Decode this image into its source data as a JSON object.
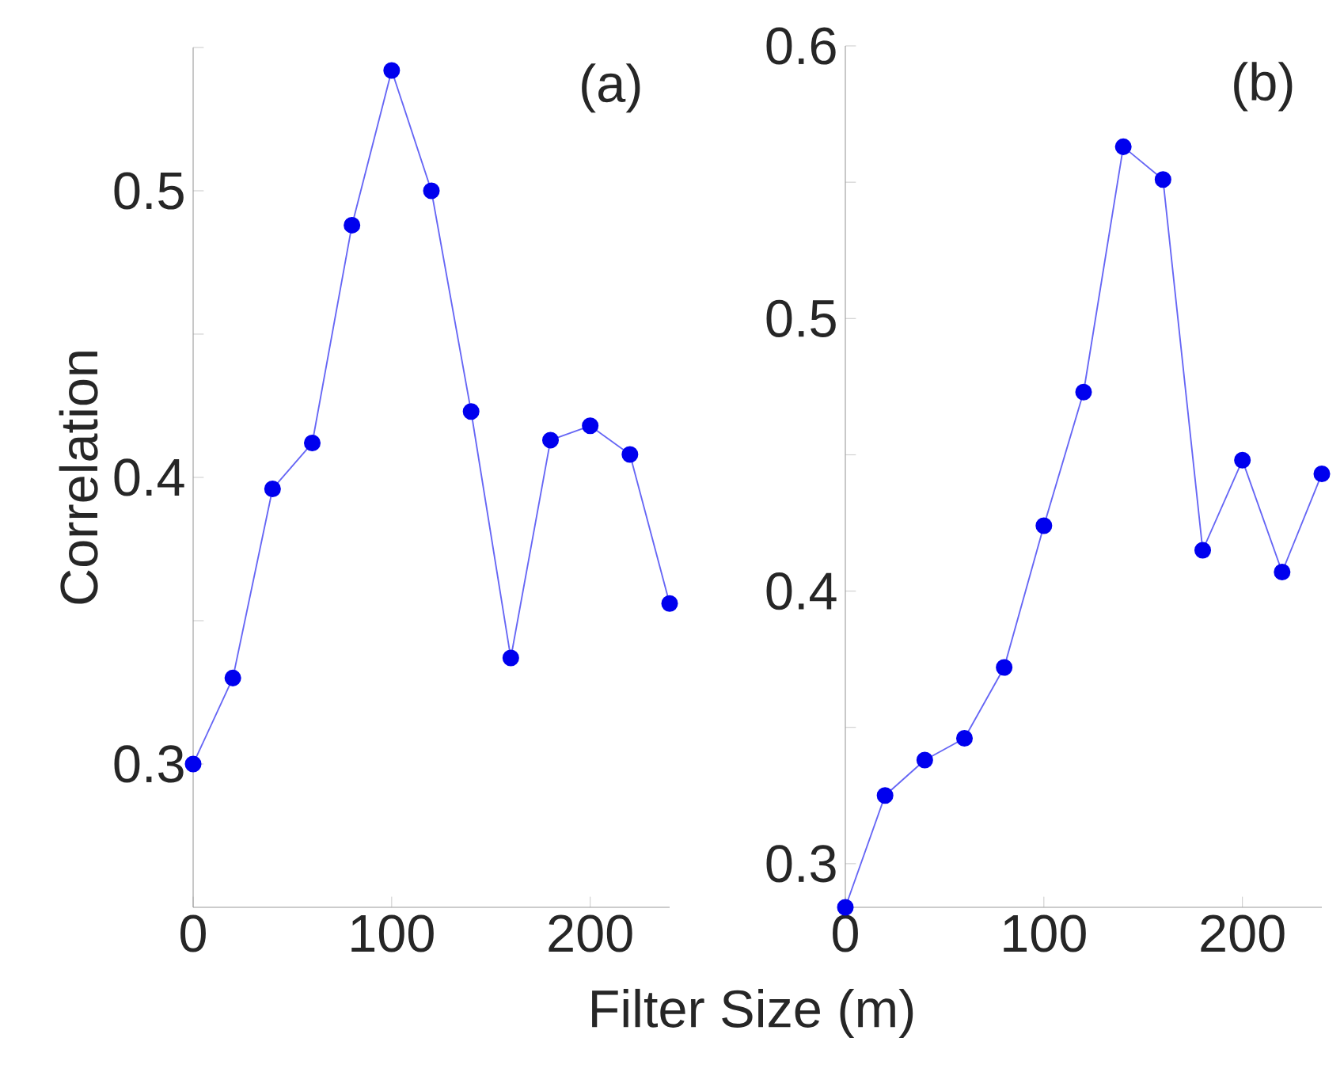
{
  "chart_data": [
    {
      "type": "line",
      "xlabel": "Filter Size (m)",
      "ylabel": "Correlation",
      "annotations": [
        "(a)"
      ],
      "x": [
        0,
        20,
        40,
        60,
        80,
        100,
        120,
        140,
        160,
        180,
        200,
        220,
        240
      ],
      "series": [
        {
          "color": "#0000ee",
          "values": [
            0.3,
            0.33,
            0.396,
            0.412,
            0.488,
            0.542,
            0.5,
            0.423,
            0.337,
            0.413,
            0.418,
            0.408,
            0.356
          ]
        }
      ],
      "xlim": [
        0,
        240
      ],
      "ylim": [
        0.25,
        0.55
      ],
      "xticks": [
        0,
        100,
        200
      ],
      "yticks": [
        0.3,
        {
          "value": 0.35,
          "label": null
        },
        0.4,
        {
          "value": 0.45,
          "label": null
        },
        0.5,
        {
          "value": 0.55,
          "label": null
        }
      ],
      "marker": "circle",
      "grid": false
    },
    {
      "type": "line",
      "annotations": [
        "(b)"
      ],
      "x": [
        0,
        20,
        40,
        60,
        80,
        100,
        120,
        140,
        160,
        180,
        200,
        220,
        240
      ],
      "series": [
        {
          "color": "#0000ee",
          "values": [
            0.284,
            0.325,
            0.338,
            0.346,
            0.372,
            0.424,
            0.473,
            0.563,
            0.551,
            0.415,
            0.448,
            0.407,
            0.443
          ]
        }
      ],
      "xlim": [
        0,
        240
      ],
      "ylim": [
        0.284,
        0.6
      ],
      "xticks": [
        0,
        100,
        200
      ],
      "yticks": [
        0.3,
        {
          "value": 0.35,
          "label": null
        },
        0.4,
        {
          "value": 0.45,
          "label": null
        },
        0.5,
        {
          "value": 0.55,
          "label": null
        },
        0.6
      ],
      "marker": "circle",
      "grid": false
    }
  ]
}
